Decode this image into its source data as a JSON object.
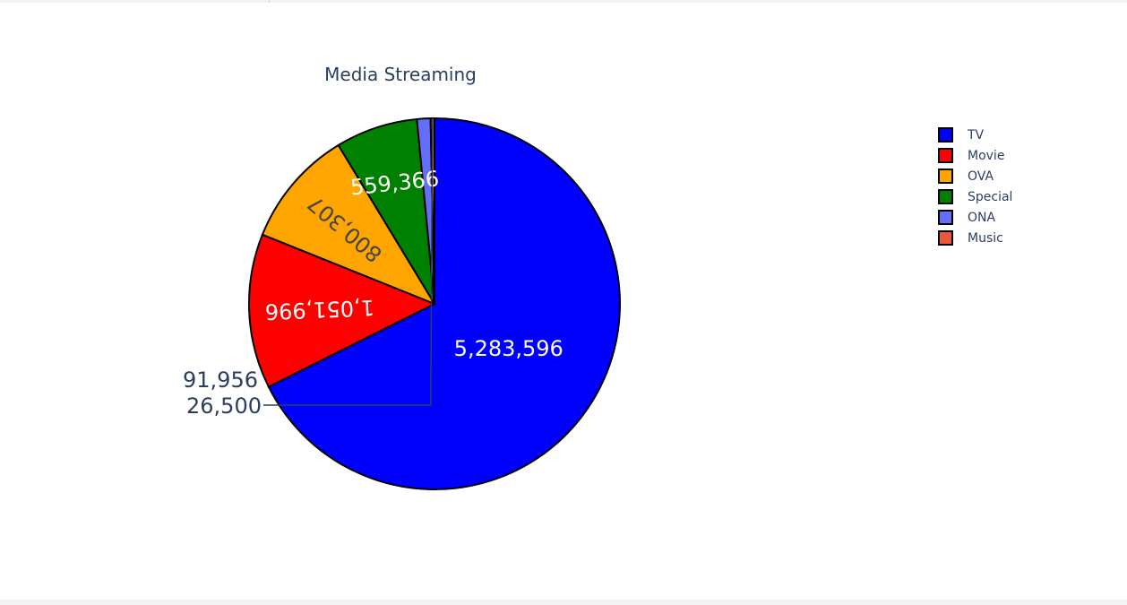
{
  "chart_data": {
    "type": "pie",
    "title": "Media Streaming",
    "categories": [
      "TV",
      "Movie",
      "OVA",
      "Special",
      "ONA",
      "Music"
    ],
    "values": [
      5283596,
      1051996,
      800307,
      559366,
      91956,
      26500
    ],
    "labels": [
      "5,283,596",
      "1,051,996",
      "800,307",
      "559,366",
      "91,956",
      "26,500"
    ],
    "colors": [
      "#0000ff",
      "#ff0000",
      "#ffa500",
      "#008000",
      "#636efa",
      "#ef553b"
    ],
    "label_colors": [
      "#ffffff",
      "#ffffff",
      "#444444",
      "#ffffff",
      "#2a3f5f",
      "#2a3f5f"
    ],
    "direction": "clockwise",
    "legend_position": "top-right"
  }
}
